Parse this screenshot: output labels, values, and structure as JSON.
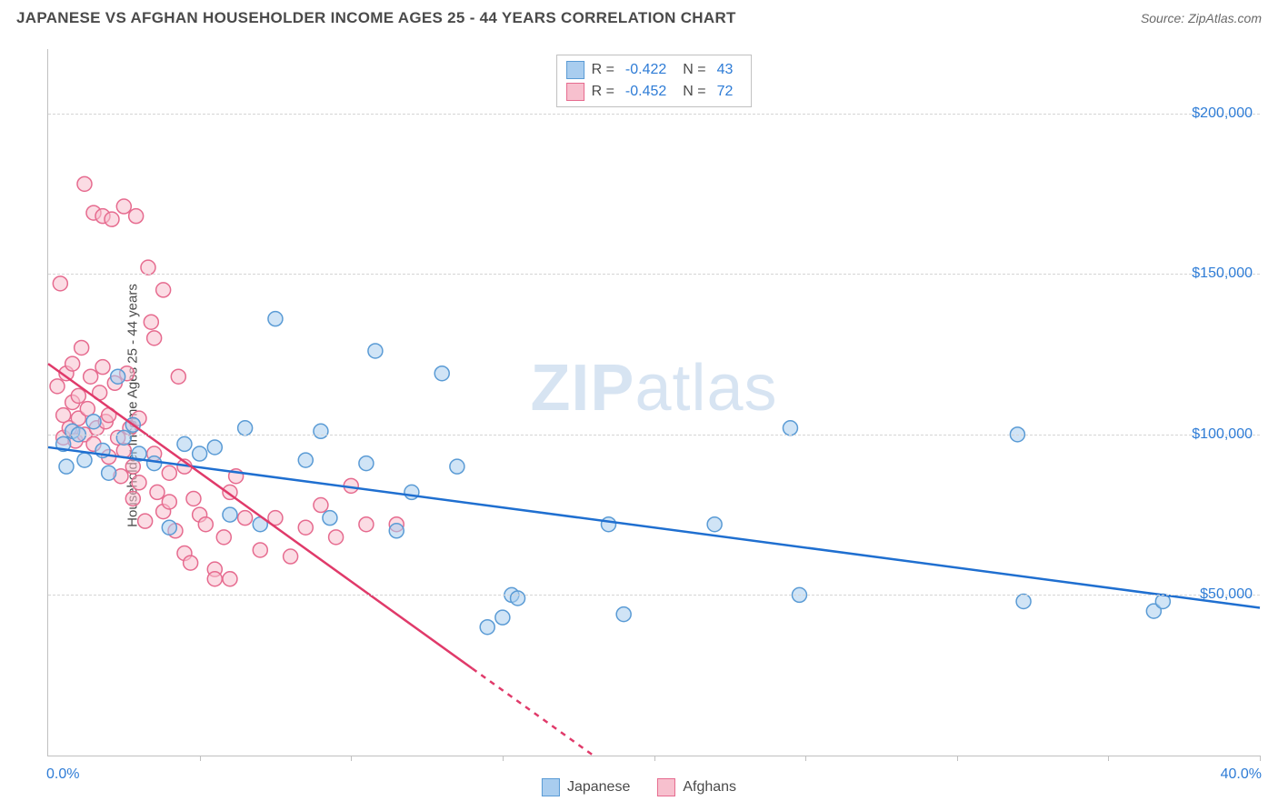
{
  "header": {
    "title": "JAPANESE VS AFGHAN HOUSEHOLDER INCOME AGES 25 - 44 YEARS CORRELATION CHART",
    "source": "Source: ZipAtlas.com"
  },
  "watermark": {
    "bold": "ZIP",
    "light": "atlas"
  },
  "chart": {
    "type": "scatter",
    "y_axis_label": "Householder Income Ages 25 - 44 years",
    "xlim": [
      0,
      40
    ],
    "ylim": [
      0,
      220000
    ],
    "x_start_label": "0.0%",
    "x_end_label": "40.0%",
    "x_tick_positions": [
      5,
      10,
      15,
      20,
      25,
      30,
      35,
      40
    ],
    "y_ticks": [
      50000,
      100000,
      150000,
      200000
    ],
    "y_tick_labels": [
      "$50,000",
      "$100,000",
      "$150,000",
      "$200,000"
    ],
    "grid_color": "#d5d5d5",
    "background_color": "#ffffff",
    "tick_label_color": "#2e7cd6",
    "axis_label_color": "#4a4a4a",
    "marker_radius": 8,
    "marker_stroke_width": 1.5,
    "trend_line_width": 2.5,
    "series": [
      {
        "name": "Japanese",
        "label": "Japanese",
        "fill_color": "#a9cdef",
        "stroke_color": "#5a9bd5",
        "fill_opacity": 0.55,
        "R": "-0.422",
        "N": "43",
        "trend": {
          "x1": 0,
          "y1": 96000,
          "x2": 40,
          "y2": 46000,
          "color": "#1f6fd0",
          "dash_from_x": null
        },
        "points": [
          [
            0.5,
            97000
          ],
          [
            0.6,
            90000
          ],
          [
            0.8,
            101000
          ],
          [
            1.0,
            100000
          ],
          [
            1.2,
            92000
          ],
          [
            1.5,
            104000
          ],
          [
            1.8,
            95000
          ],
          [
            2.0,
            88000
          ],
          [
            2.3,
            118000
          ],
          [
            2.5,
            99000
          ],
          [
            2.8,
            103000
          ],
          [
            3.0,
            94000
          ],
          [
            3.5,
            91000
          ],
          [
            4.0,
            71000
          ],
          [
            4.5,
            97000
          ],
          [
            5.0,
            94000
          ],
          [
            5.5,
            96000
          ],
          [
            6.0,
            75000
          ],
          [
            6.5,
            102000
          ],
          [
            7.0,
            72000
          ],
          [
            7.5,
            136000
          ],
          [
            8.5,
            92000
          ],
          [
            9.0,
            101000
          ],
          [
            9.3,
            74000
          ],
          [
            10.5,
            91000
          ],
          [
            10.8,
            126000
          ],
          [
            11.5,
            70000
          ],
          [
            12.0,
            82000
          ],
          [
            13.0,
            119000
          ],
          [
            13.5,
            90000
          ],
          [
            14.5,
            40000
          ],
          [
            15.0,
            43000
          ],
          [
            15.3,
            50000
          ],
          [
            15.5,
            49000
          ],
          [
            18.5,
            72000
          ],
          [
            19.0,
            44000
          ],
          [
            22.0,
            72000
          ],
          [
            24.5,
            102000
          ],
          [
            24.8,
            50000
          ],
          [
            32.0,
            100000
          ],
          [
            32.2,
            48000
          ],
          [
            36.5,
            45000
          ],
          [
            36.8,
            48000
          ]
        ]
      },
      {
        "name": "Afghans",
        "label": "Afghans",
        "fill_color": "#f7c0ce",
        "stroke_color": "#e66b8f",
        "fill_opacity": 0.55,
        "R": "-0.452",
        "N": "72",
        "trend": {
          "x1": 0,
          "y1": 122000,
          "x2": 18,
          "y2": 0,
          "color": "#e03a6a",
          "dash_from_x": 14
        },
        "points": [
          [
            0.3,
            115000
          ],
          [
            0.4,
            147000
          ],
          [
            0.5,
            106000
          ],
          [
            0.5,
            99000
          ],
          [
            0.6,
            119000
          ],
          [
            0.7,
            102000
          ],
          [
            0.8,
            110000
          ],
          [
            0.8,
            122000
          ],
          [
            0.9,
            98000
          ],
          [
            1.0,
            112000
          ],
          [
            1.0,
            105000
          ],
          [
            1.1,
            127000
          ],
          [
            1.2,
            100000
          ],
          [
            1.2,
            178000
          ],
          [
            1.3,
            108000
          ],
          [
            1.4,
            118000
          ],
          [
            1.5,
            169000
          ],
          [
            1.5,
            97000
          ],
          [
            1.6,
            102000
          ],
          [
            1.7,
            113000
          ],
          [
            1.8,
            121000
          ],
          [
            1.8,
            168000
          ],
          [
            1.9,
            104000
          ],
          [
            2.0,
            93000
          ],
          [
            2.0,
            106000
          ],
          [
            2.1,
            167000
          ],
          [
            2.2,
            116000
          ],
          [
            2.3,
            99000
          ],
          [
            2.4,
            87000
          ],
          [
            2.5,
            95000
          ],
          [
            2.5,
            171000
          ],
          [
            2.6,
            119000
          ],
          [
            2.7,
            102000
          ],
          [
            2.8,
            90000
          ],
          [
            2.8,
            80000
          ],
          [
            2.9,
            168000
          ],
          [
            3.0,
            105000
          ],
          [
            3.0,
            85000
          ],
          [
            3.2,
            73000
          ],
          [
            3.3,
            152000
          ],
          [
            3.4,
            135000
          ],
          [
            3.5,
            94000
          ],
          [
            3.5,
            130000
          ],
          [
            3.6,
            82000
          ],
          [
            3.8,
            76000
          ],
          [
            3.8,
            145000
          ],
          [
            4.0,
            88000
          ],
          [
            4.0,
            79000
          ],
          [
            4.2,
            70000
          ],
          [
            4.3,
            118000
          ],
          [
            4.5,
            63000
          ],
          [
            4.5,
            90000
          ],
          [
            4.7,
            60000
          ],
          [
            4.8,
            80000
          ],
          [
            5.0,
            75000
          ],
          [
            5.2,
            72000
          ],
          [
            5.5,
            58000
          ],
          [
            5.5,
            55000
          ],
          [
            5.8,
            68000
          ],
          [
            6.0,
            82000
          ],
          [
            6.0,
            55000
          ],
          [
            6.2,
            87000
          ],
          [
            6.5,
            74000
          ],
          [
            7.0,
            64000
          ],
          [
            7.5,
            74000
          ],
          [
            8.0,
            62000
          ],
          [
            8.5,
            71000
          ],
          [
            9.0,
            78000
          ],
          [
            9.5,
            68000
          ],
          [
            10.0,
            84000
          ],
          [
            10.5,
            72000
          ],
          [
            11.5,
            72000
          ]
        ]
      }
    ]
  },
  "legend_top": {
    "r_label": "R =",
    "n_label": "N ="
  },
  "legend_bottom": {
    "items": [
      "Japanese",
      "Afghans"
    ]
  }
}
